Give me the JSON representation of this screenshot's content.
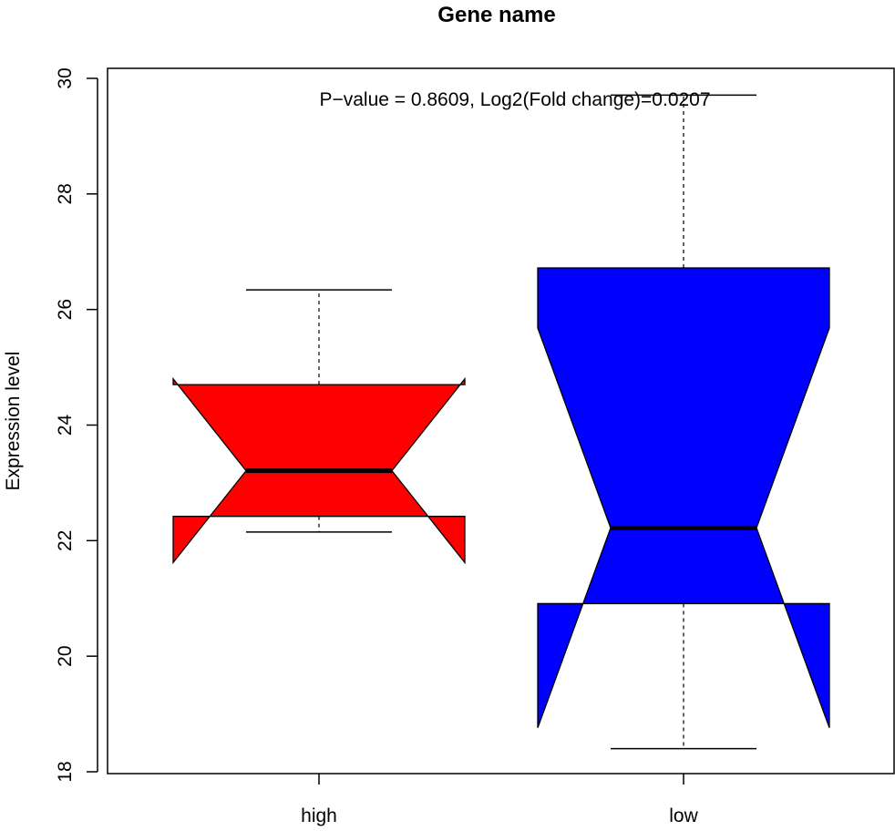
{
  "chart_data": {
    "type": "boxplot",
    "title": "Gene name",
    "xlabel": "",
    "ylabel": "Expression level",
    "ylim": [
      18,
      30
    ],
    "y_ticks": [
      "18",
      "20",
      "22",
      "24",
      "26",
      "28",
      "30"
    ],
    "annotation": "P−value = 0.8609, Log2(Fold change)=0.0207",
    "notched": true,
    "grid": false,
    "groups": [
      {
        "label": "high",
        "color": "#FF0000",
        "whisker_low": 22.15,
        "q1": 22.42,
        "median": 23.21,
        "q3": 24.7,
        "whisker_high": 26.34,
        "notch_low": 21.62,
        "notch_high": 24.8
      },
      {
        "label": "low",
        "color": "#0000FF",
        "whisker_low": 18.4,
        "q1": 20.91,
        "median": 22.22,
        "q3": 26.72,
        "whisker_high": 29.71,
        "notch_low": 18.76,
        "notch_high": 25.68
      }
    ]
  }
}
